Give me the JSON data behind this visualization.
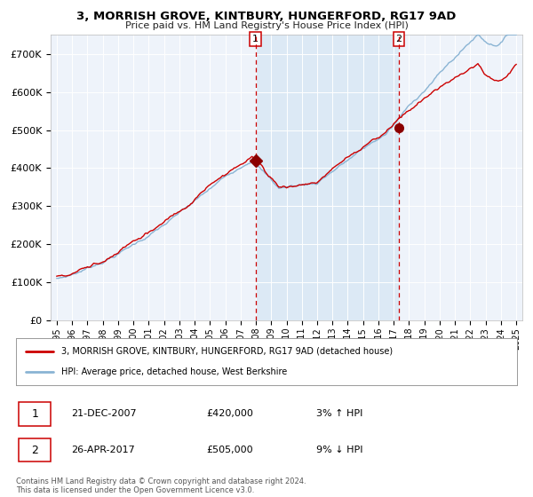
{
  "title": "3, MORRISH GROVE, KINTBURY, HUNGERFORD, RG17 9AD",
  "subtitle": "Price paid vs. HM Land Registry's House Price Index (HPI)",
  "legend_line1": "3, MORRISH GROVE, KINTBURY, HUNGERFORD, RG17 9AD (detached house)",
  "legend_line2": "HPI: Average price, detached house, West Berkshire",
  "annotation1_date": "21-DEC-2007",
  "annotation1_price": "£420,000",
  "annotation1_hpi": "3% ↑ HPI",
  "annotation2_date": "26-APR-2017",
  "annotation2_price": "£505,000",
  "annotation2_hpi": "9% ↓ HPI",
  "footer": "Contains HM Land Registry data © Crown copyright and database right 2024.\nThis data is licensed under the Open Government Licence v3.0.",
  "hpi_color": "#8ab4d4",
  "price_color": "#cc0000",
  "marker_color": "#8b0000",
  "vline_color": "#cc0000",
  "shade_color": "#dce9f5",
  "background_color": "#ffffff",
  "plot_bg_color": "#eef3fa",
  "grid_color": "#ffffff",
  "ylim": [
    0,
    750000
  ],
  "yticks": [
    0,
    100000,
    200000,
    300000,
    400000,
    500000,
    600000,
    700000
  ],
  "ytick_labels": [
    "£0",
    "£100K",
    "£200K",
    "£300K",
    "£400K",
    "£500K",
    "£600K",
    "£700K"
  ],
  "year_start": 1995,
  "year_end": 2025,
  "sale1_year": 2007.97,
  "sale2_year": 2017.33,
  "sale1_price": 420000,
  "sale2_price": 505000,
  "xlim_left": 1994.6,
  "xlim_right": 2025.4
}
